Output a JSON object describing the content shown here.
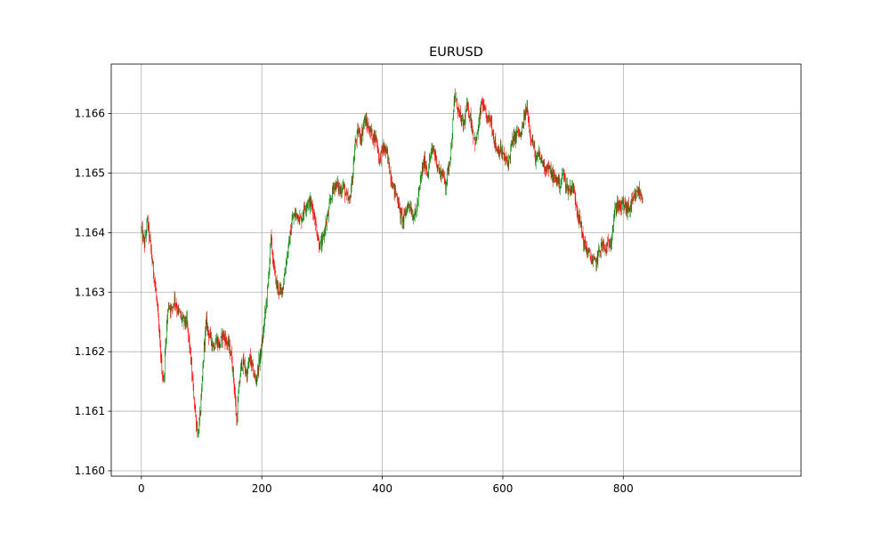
{
  "chart_data": {
    "type": "candlestick",
    "title": "EURUSD",
    "xlabel": "",
    "ylabel": "",
    "xlim": [
      -50,
      1095
    ],
    "ylim": [
      1.15991,
      1.16683
    ],
    "x_ticks": [
      0,
      200,
      400,
      600,
      800
    ],
    "y_ticks": [
      1.16,
      1.161,
      1.162,
      1.163,
      1.164,
      1.165,
      1.166
    ],
    "y_tick_labels": [
      "1.160",
      "1.161",
      "1.162",
      "1.163",
      "1.164",
      "1.165",
      "1.166"
    ],
    "grid": true,
    "colors": {
      "up": "#008000",
      "down": "#ff0000",
      "grid": "#b0b0b0"
    },
    "bar_count": 833,
    "close_path": [
      [
        0,
        1.16405
      ],
      [
        5,
        1.1638
      ],
      [
        10,
        1.1642
      ],
      [
        15,
        1.1638
      ],
      [
        18,
        1.1635
      ],
      [
        22,
        1.1632
      ],
      [
        26,
        1.1628
      ],
      [
        30,
        1.1622
      ],
      [
        34,
        1.1617
      ],
      [
        37,
        1.1615
      ],
      [
        41,
        1.1623
      ],
      [
        45,
        1.1628
      ],
      [
        50,
        1.1627
      ],
      [
        55,
        1.1629
      ],
      [
        60,
        1.1627
      ],
      [
        65,
        1.1626
      ],
      [
        70,
        1.1625
      ],
      [
        75,
        1.1625
      ],
      [
        80,
        1.1621
      ],
      [
        85,
        1.1615
      ],
      [
        90,
        1.1609
      ],
      [
        94,
        1.1606
      ],
      [
        97,
        1.1609
      ],
      [
        100,
        1.1613
      ],
      [
        104,
        1.1621
      ],
      [
        108,
        1.1625
      ],
      [
        112,
        1.1623
      ],
      [
        116,
        1.1622
      ],
      [
        120,
        1.1621
      ],
      [
        125,
        1.1622
      ],
      [
        130,
        1.1621
      ],
      [
        135,
        1.1623
      ],
      [
        140,
        1.1622
      ],
      [
        145,
        1.1621
      ],
      [
        150,
        1.1619
      ],
      [
        155,
        1.1613
      ],
      [
        158,
        1.1608
      ],
      [
        162,
        1.1614
      ],
      [
        166,
        1.1618
      ],
      [
        170,
        1.1618
      ],
      [
        175,
        1.1616
      ],
      [
        180,
        1.1619
      ],
      [
        185,
        1.1617
      ],
      [
        190,
        1.1615
      ],
      [
        195,
        1.1618
      ],
      [
        200,
        1.1621
      ],
      [
        205,
        1.1626
      ],
      [
        210,
        1.1631
      ],
      [
        215,
        1.1639
      ],
      [
        220,
        1.1634
      ],
      [
        225,
        1.1631
      ],
      [
        230,
        1.163
      ],
      [
        235,
        1.1631
      ],
      [
        240,
        1.1635
      ],
      [
        245,
        1.1638
      ],
      [
        250,
        1.1642
      ],
      [
        255,
        1.1643
      ],
      [
        260,
        1.1643
      ],
      [
        265,
        1.1642
      ],
      [
        270,
        1.1644
      ],
      [
        275,
        1.1645
      ],
      [
        280,
        1.1645
      ],
      [
        285,
        1.1644
      ],
      [
        290,
        1.1641
      ],
      [
        295,
        1.1638
      ],
      [
        300,
        1.1638
      ],
      [
        305,
        1.1641
      ],
      [
        310,
        1.1643
      ],
      [
        315,
        1.1646
      ],
      [
        320,
        1.1648
      ],
      [
        325,
        1.1648
      ],
      [
        330,
        1.1647
      ],
      [
        335,
        1.1648
      ],
      [
        340,
        1.1646
      ],
      [
        345,
        1.1645
      ],
      [
        350,
        1.1649
      ],
      [
        355,
        1.1655
      ],
      [
        360,
        1.1657
      ],
      [
        365,
        1.1656
      ],
      [
        370,
        1.1659
      ],
      [
        375,
        1.1658
      ],
      [
        380,
        1.1657
      ],
      [
        385,
        1.1656
      ],
      [
        390,
        1.1656
      ],
      [
        395,
        1.1652
      ],
      [
        400,
        1.1654
      ],
      [
        405,
        1.1654
      ],
      [
        410,
        1.1652
      ],
      [
        415,
        1.1649
      ],
      [
        420,
        1.1647
      ],
      [
        425,
        1.1646
      ],
      [
        430,
        1.1643
      ],
      [
        435,
        1.1642
      ],
      [
        440,
        1.1644
      ],
      [
        445,
        1.1645
      ],
      [
        450,
        1.1643
      ],
      [
        455,
        1.1643
      ],
      [
        460,
        1.1646
      ],
      [
        465,
        1.165
      ],
      [
        470,
        1.1652
      ],
      [
        475,
        1.165
      ],
      [
        480,
        1.1653
      ],
      [
        485,
        1.1654
      ],
      [
        490,
        1.1652
      ],
      [
        495,
        1.165
      ],
      [
        500,
        1.165
      ],
      [
        505,
        1.1648
      ],
      [
        510,
        1.1651
      ],
      [
        515,
        1.1655
      ],
      [
        520,
        1.1663
      ],
      [
        525,
        1.1661
      ],
      [
        530,
        1.1659
      ],
      [
        535,
        1.1658
      ],
      [
        540,
        1.1661
      ],
      [
        545,
        1.166
      ],
      [
        550,
        1.1657
      ],
      [
        555,
        1.1655
      ],
      [
        560,
        1.1658
      ],
      [
        565,
        1.1662
      ],
      [
        570,
        1.166
      ],
      [
        575,
        1.1659
      ],
      [
        580,
        1.1659
      ],
      [
        585,
        1.1656
      ],
      [
        590,
        1.1654
      ],
      [
        595,
        1.1654
      ],
      [
        600,
        1.1653
      ],
      [
        605,
        1.1652
      ],
      [
        610,
        1.1652
      ],
      [
        615,
        1.1655
      ],
      [
        620,
        1.1656
      ],
      [
        625,
        1.1657
      ],
      [
        630,
        1.1656
      ],
      [
        635,
        1.1659
      ],
      [
        640,
        1.1661
      ],
      [
        645,
        1.1657
      ],
      [
        650,
        1.1655
      ],
      [
        655,
        1.1652
      ],
      [
        660,
        1.1653
      ],
      [
        665,
        1.1652
      ],
      [
        670,
        1.1651
      ],
      [
        675,
        1.1651
      ],
      [
        680,
        1.165
      ],
      [
        685,
        1.1649
      ],
      [
        690,
        1.1649
      ],
      [
        695,
        1.1648
      ],
      [
        700,
        1.165
      ],
      [
        705,
        1.1648
      ],
      [
        710,
        1.1647
      ],
      [
        715,
        1.1648
      ],
      [
        720,
        1.1646
      ],
      [
        725,
        1.1643
      ],
      [
        730,
        1.1641
      ],
      [
        735,
        1.1638
      ],
      [
        740,
        1.1637
      ],
      [
        745,
        1.1636
      ],
      [
        750,
        1.1635
      ],
      [
        755,
        1.1635
      ],
      [
        760,
        1.1637
      ],
      [
        765,
        1.1638
      ],
      [
        770,
        1.1637
      ],
      [
        775,
        1.1638
      ],
      [
        780,
        1.1639
      ],
      [
        785,
        1.1643
      ],
      [
        790,
        1.1645
      ],
      [
        795,
        1.1644
      ],
      [
        800,
        1.1645
      ],
      [
        805,
        1.1644
      ],
      [
        810,
        1.1644
      ],
      [
        815,
        1.1645
      ],
      [
        820,
        1.1646
      ],
      [
        825,
        1.1647
      ],
      [
        830,
        1.1646
      ],
      [
        833,
        1.1646
      ]
    ]
  }
}
